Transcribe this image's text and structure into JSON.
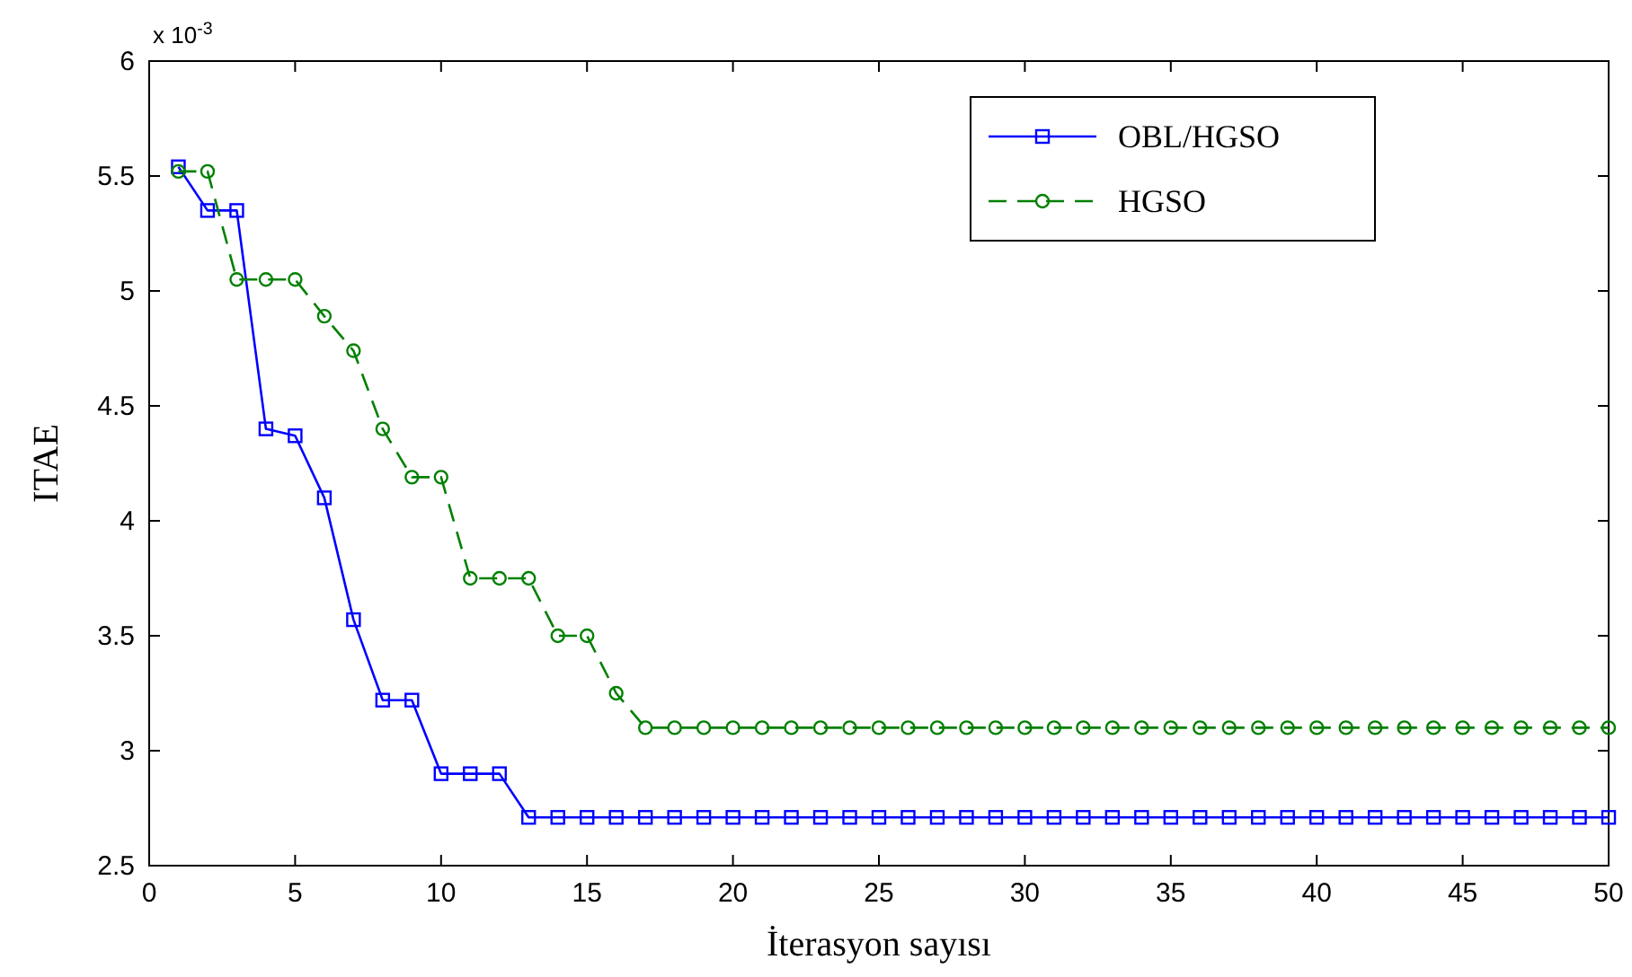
{
  "chart_data": {
    "type": "line",
    "xlabel": "İterasyon sayısı",
    "ylabel": "ITAE",
    "annotations": [
      "x 10$^{-3}$"
    ],
    "x": [
      1,
      2,
      3,
      4,
      5,
      6,
      7,
      8,
      9,
      10,
      11,
      12,
      13,
      14,
      15,
      16,
      17,
      18,
      19,
      20,
      21,
      22,
      23,
      24,
      25,
      26,
      27,
      28,
      29,
      30,
      31,
      32,
      33,
      34,
      35,
      36,
      37,
      38,
      39,
      40,
      41,
      42,
      43,
      44,
      45,
      46,
      47,
      48,
      49,
      50
    ],
    "series": [
      {
        "name": "OBL/HGSO",
        "color": "#0000ff",
        "marker": "square",
        "line_style": "solid",
        "values": [
          5.54,
          5.35,
          5.35,
          4.4,
          4.37,
          4.1,
          3.57,
          3.22,
          3.22,
          2.9,
          2.9,
          2.9,
          2.71,
          2.71,
          2.71,
          2.71,
          2.71,
          2.71,
          2.71,
          2.71,
          2.71,
          2.71,
          2.71,
          2.71,
          2.71,
          2.71,
          2.71,
          2.71,
          2.71,
          2.71,
          2.71,
          2.71,
          2.71,
          2.71,
          2.71,
          2.71,
          2.71,
          2.71,
          2.71,
          2.71,
          2.71,
          2.71,
          2.71,
          2.71,
          2.71,
          2.71,
          2.71,
          2.71,
          2.71,
          2.71
        ]
      },
      {
        "name": "HGSO",
        "color": "#008000",
        "marker": "circle",
        "line_style": "dashed",
        "values": [
          5.52,
          5.52,
          5.05,
          5.05,
          5.05,
          4.89,
          4.74,
          4.4,
          4.19,
          4.19,
          3.75,
          3.75,
          3.75,
          3.5,
          3.5,
          3.25,
          3.1,
          3.1,
          3.1,
          3.1,
          3.1,
          3.1,
          3.1,
          3.1,
          3.1,
          3.1,
          3.1,
          3.1,
          3.1,
          3.1,
          3.1,
          3.1,
          3.1,
          3.1,
          3.1,
          3.1,
          3.1,
          3.1,
          3.1,
          3.1,
          3.1,
          3.1,
          3.1,
          3.1,
          3.1,
          3.1,
          3.1,
          3.1,
          3.1,
          3.1
        ]
      }
    ],
    "xlim": [
      0,
      50
    ],
    "xticks": [
      0,
      5,
      10,
      15,
      20,
      25,
      30,
      35,
      40,
      45,
      50
    ],
    "ylim": [
      2.5,
      6
    ],
    "yticks": [
      2.5,
      3,
      3.5,
      4,
      4.5,
      5,
      5.5,
      6
    ],
    "grid": false,
    "legend": "top right"
  }
}
